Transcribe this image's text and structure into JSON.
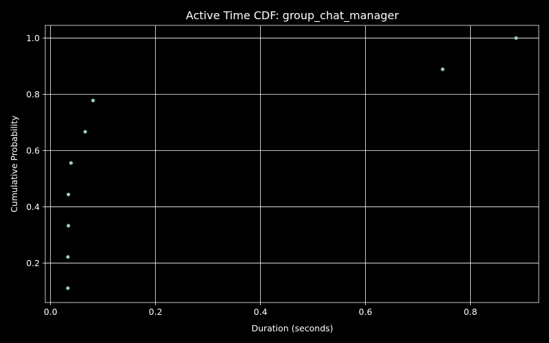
{
  "chart_data": {
    "type": "scatter",
    "title": "Active Time CDF: group_chat_manager",
    "xlabel": "Duration (seconds)",
    "ylabel": "Cumulative Probability",
    "xlim": [
      -0.01,
      0.93
    ],
    "ylim": [
      0.06,
      1.045
    ],
    "xticks": [
      0.0,
      0.2,
      0.4,
      0.6,
      0.8
    ],
    "xtick_labels": [
      "0.0",
      "0.2",
      "0.4",
      "0.6",
      "0.8"
    ],
    "yticks": [
      0.2,
      0.4,
      0.6,
      0.8,
      1.0
    ],
    "ytick_labels": [
      "0.2",
      "0.4",
      "0.6",
      "0.8",
      "1.0"
    ],
    "grid": true,
    "series": [
      {
        "marker_color": "#8dd3c7",
        "points": [
          {
            "x": 0.033,
            "y": 0.111
          },
          {
            "x": 0.033,
            "y": 0.222
          },
          {
            "x": 0.034,
            "y": 0.333
          },
          {
            "x": 0.034,
            "y": 0.444
          },
          {
            "x": 0.039,
            "y": 0.556
          },
          {
            "x": 0.066,
            "y": 0.667
          },
          {
            "x": 0.081,
            "y": 0.778
          },
          {
            "x": 0.747,
            "y": 0.889
          },
          {
            "x": 0.887,
            "y": 1.0
          }
        ]
      }
    ]
  }
}
